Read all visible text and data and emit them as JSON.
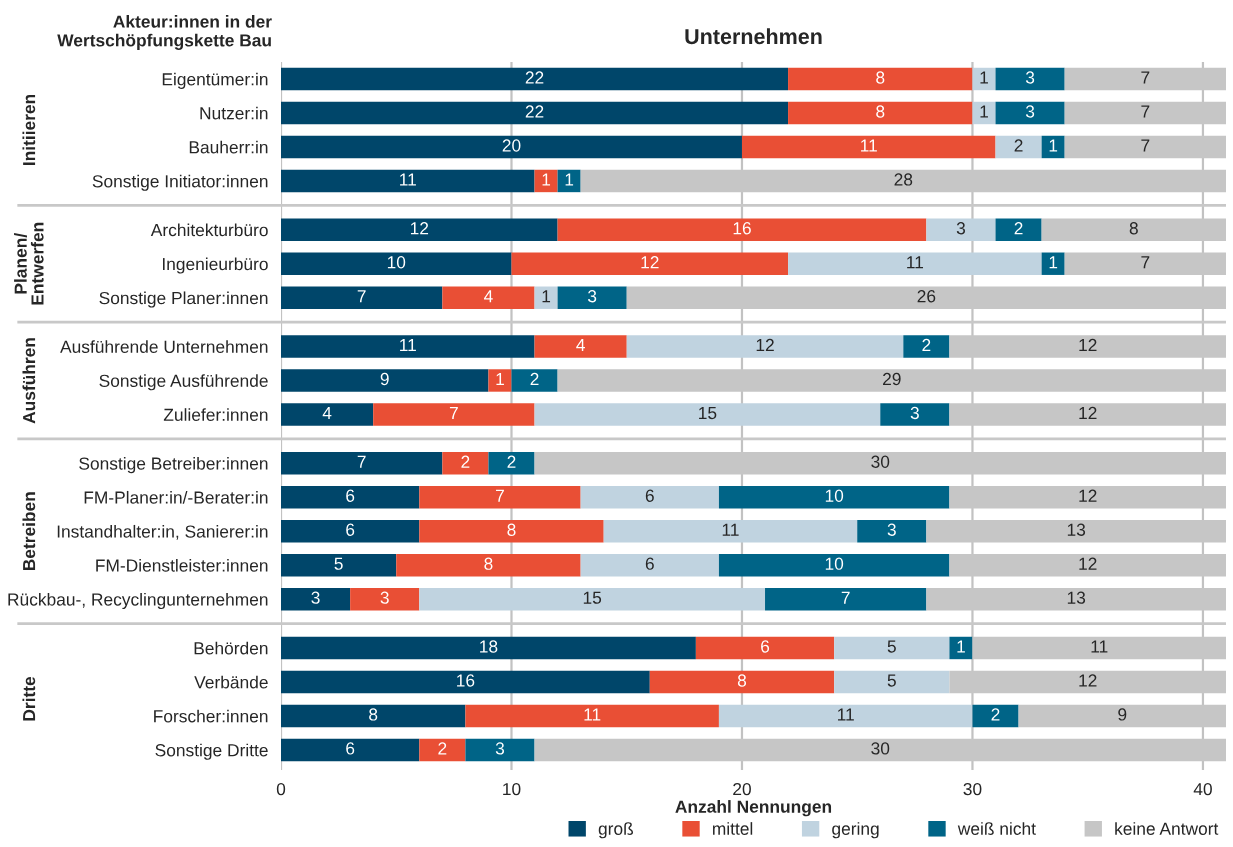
{
  "chart_data": {
    "type": "bar",
    "orientation": "horizontal",
    "stacked": true,
    "title": "Unternehmen",
    "xlabel": "Anzahl Nennungen",
    "ylabel": "Akteur:innen in der\nWertschöpfungskette Bau",
    "categories": [
      "Eigentümer:in",
      "Nutzer:in",
      "Bauherr:in",
      "Sonstige Initiator:innen",
      "Architekturbüro",
      "Ingenieurbüro",
      "Sonstige Planer:innen",
      "Ausführende Unternehmen",
      "Sonstige Ausführende",
      "Zuliefer:innen",
      "Sonstige Betreiber:innen",
      "FM-Planer:in/-Berater:in",
      "Instandhalter:in, Sanierer:in",
      "FM-Dienstleister:innen",
      "Rückbau-, Recyclingunternehmen",
      "Behörden",
      "Verbände",
      "Forscher:innen",
      "Sonstige Dritte"
    ],
    "series": [
      {
        "name": "groß",
        "color": "#00466a",
        "values": [
          22,
          22,
          20,
          11,
          12,
          10,
          7,
          11,
          9,
          4,
          7,
          6,
          6,
          5,
          3,
          18,
          16,
          8,
          6
        ]
      },
      {
        "name": "mittel",
        "color": "#e94f35",
        "values": [
          8,
          8,
          11,
          1,
          16,
          12,
          4,
          4,
          1,
          7,
          2,
          7,
          8,
          8,
          3,
          6,
          8,
          11,
          2
        ]
      },
      {
        "name": "gering",
        "color": "#c0d3e0",
        "values": [
          1,
          1,
          2,
          null,
          3,
          11,
          1,
          12,
          null,
          15,
          null,
          6,
          11,
          6,
          15,
          5,
          5,
          11,
          null
        ]
      },
      {
        "name": "weiß nicht",
        "color": "#006487",
        "values": [
          3,
          3,
          1,
          1,
          2,
          1,
          3,
          2,
          2,
          3,
          2,
          10,
          3,
          10,
          7,
          1,
          null,
          2,
          3
        ]
      },
      {
        "name": "keine Antwort",
        "color": "#c6c6c6",
        "values": [
          7,
          7,
          7,
          28,
          8,
          7,
          26,
          12,
          29,
          12,
          30,
          12,
          13,
          12,
          13,
          11,
          12,
          9,
          30
        ]
      }
    ],
    "xlim": [
      0,
      41
    ],
    "xticks": [
      0,
      10,
      20,
      30,
      40
    ],
    "grid": "x",
    "legend": "bottom right",
    "data_labels": true,
    "annotations": [
      "Initiieren",
      "Planen/\nEntwerfen",
      "Ausführen",
      "Betreiben",
      "Dritte"
    ]
  }
}
